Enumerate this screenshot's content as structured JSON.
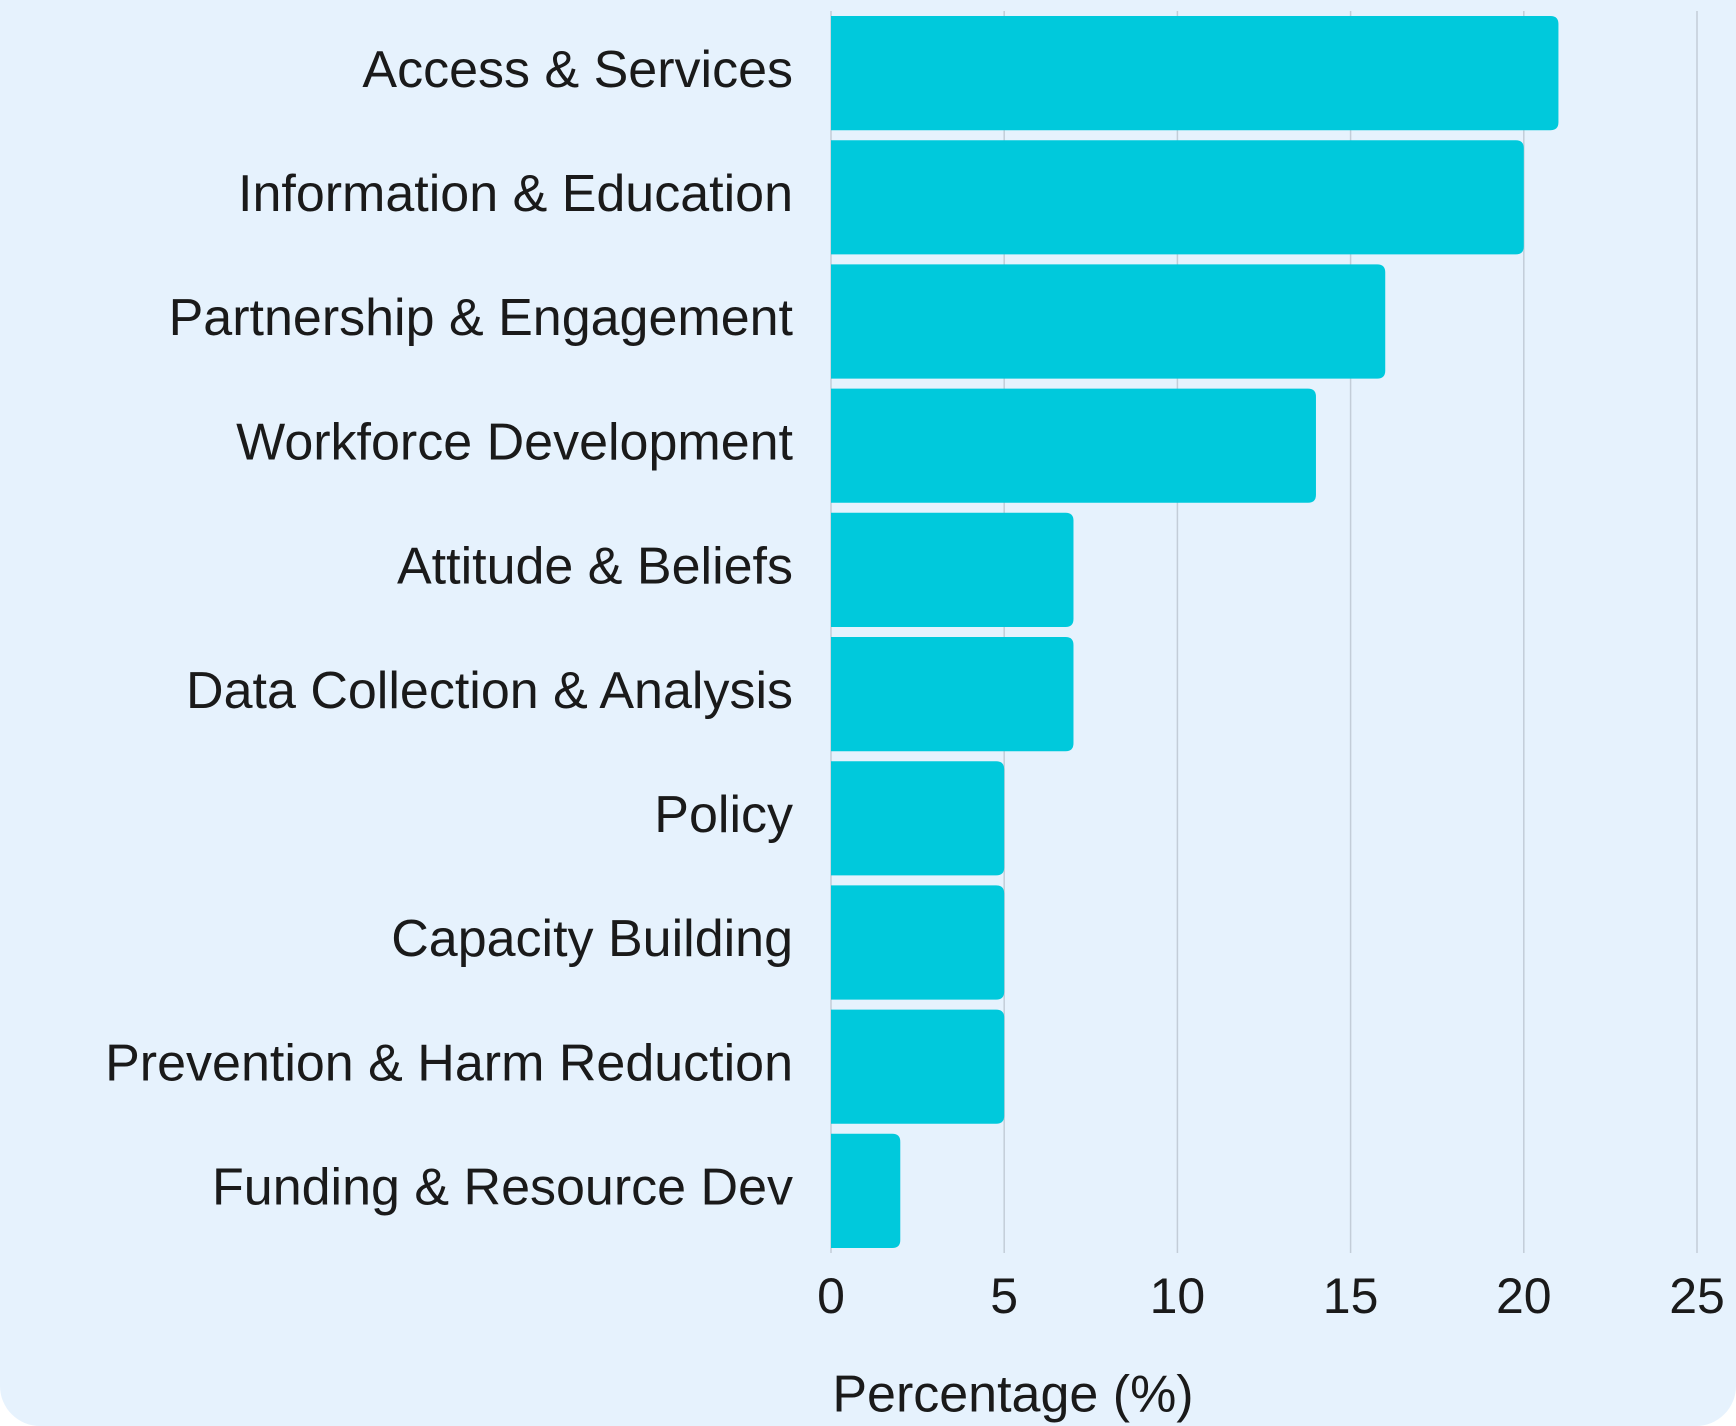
{
  "chart_data": {
    "type": "bar",
    "orientation": "horizontal",
    "categories": [
      "Access & Services",
      "Information & Education",
      "Partnership & Engagement",
      "Workforce Development",
      "Attitude & Beliefs",
      "Data Collection & Analysis",
      "Policy",
      "Capacity Building",
      "Prevention & Harm Reduction",
      "Funding & Resource Dev"
    ],
    "values": [
      21,
      20,
      16,
      14,
      7,
      7,
      5,
      5,
      5,
      2
    ],
    "color": "#00c9dc",
    "x_label": "Percentage (%)",
    "xlim": [
      0,
      25
    ],
    "xticks": [
      0,
      5,
      10,
      15,
      20,
      25
    ],
    "grid": true
  }
}
